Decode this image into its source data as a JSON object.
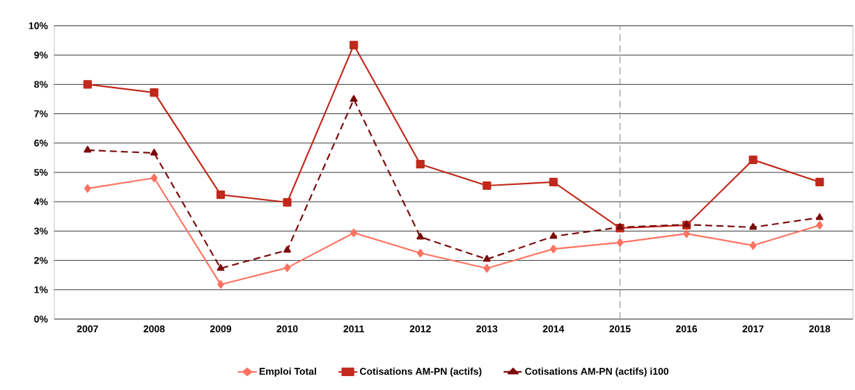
{
  "chart_data": {
    "type": "line",
    "x": [
      2007,
      2008,
      2009,
      2010,
      2011,
      2012,
      2013,
      2014,
      2015,
      2016,
      2017,
      2018
    ],
    "xlim": [
      2006.5,
      2018.5
    ],
    "xticks": [
      2007,
      2008,
      2009,
      2010,
      2011,
      2012,
      2013,
      2014,
      2015,
      2016,
      2017,
      2018
    ],
    "ylim": [
      0,
      10
    ],
    "yticks": [
      {
        "value": 0,
        "label": "0%"
      },
      {
        "value": 1,
        "label": "1%"
      },
      {
        "value": 2,
        "label": "2%"
      },
      {
        "value": 3,
        "label": "3%"
      },
      {
        "value": 4,
        "label": "4%"
      },
      {
        "value": 5,
        "label": "5%"
      },
      {
        "value": 6,
        "label": "6%"
      },
      {
        "value": 7,
        "label": "7%"
      },
      {
        "value": 8,
        "label": "8%"
      },
      {
        "value": 9,
        "label": "9%"
      },
      {
        "value": 10,
        "label": "10%"
      }
    ],
    "grid": "y",
    "legend": "bottom",
    "series": [
      {
        "name": "Emploi Total",
        "color": "#ff7261",
        "marker": "diamond",
        "line_style": "solid",
        "values": [
          4.45,
          4.81,
          1.18,
          1.75,
          2.94,
          2.25,
          1.73,
          2.39,
          2.61,
          2.91,
          2.51,
          3.2
        ]
      },
      {
        "name": "Cotisations AM-PN (actifs)",
        "color": "#c0291b",
        "marker": "square",
        "line_style": "solid",
        "values": [
          8.0,
          7.72,
          4.24,
          3.98,
          9.34,
          5.28,
          4.55,
          4.67,
          3.1,
          3.2,
          5.43,
          4.67
        ]
      },
      {
        "name": "Cotisations AM-PN (actifs) i100",
        "color": "#7b0c0c",
        "marker": "triangle",
        "line_style": "dashed",
        "values": [
          5.76,
          5.66,
          1.73,
          2.35,
          7.49,
          2.8,
          2.04,
          2.82,
          3.13,
          3.22,
          3.13,
          3.46
        ]
      }
    ],
    "ref_lines": [
      {
        "axis": "x",
        "value": 2015,
        "color": "#999999",
        "line_style": "dashed"
      }
    ]
  }
}
